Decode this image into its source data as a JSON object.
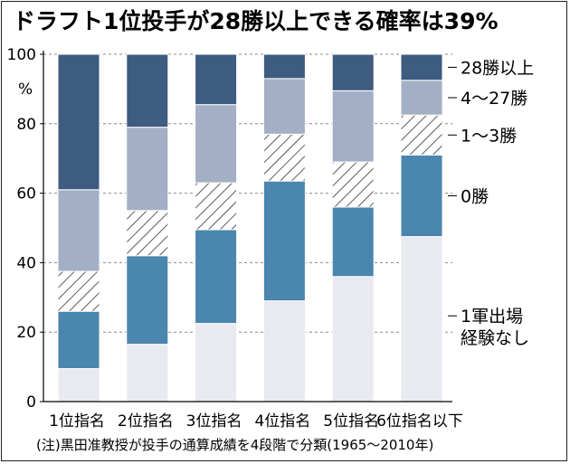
{
  "chart_data": {
    "type": "bar",
    "stacked": true,
    "title": "ドラフト1位投手が28勝以上できる確率は39%",
    "y_unit": "%",
    "ylim": [
      0,
      100
    ],
    "y_ticks": [
      0,
      20,
      40,
      60,
      80,
      100
    ],
    "categories": [
      "1位指名",
      "2位指名",
      "3位指名",
      "4位指名",
      "5位指名",
      "6位指名以下"
    ],
    "series": [
      {
        "name": "1軍出場\n経験なし",
        "color": "#e8eaf0",
        "values": [
          9.5,
          16.5,
          22.5,
          29.0,
          36.0,
          47.5
        ]
      },
      {
        "name": "0勝",
        "color": "#4a86ad",
        "values": [
          16.5,
          25.5,
          27.0,
          34.5,
          20.0,
          23.5
        ]
      },
      {
        "name": "1～3勝",
        "color": "#ffffff",
        "pattern": "hatch",
        "values": [
          11.5,
          13.0,
          13.5,
          13.5,
          13.0,
          11.5
        ]
      },
      {
        "name": "4～27勝",
        "color": "#a2afc4",
        "values": [
          23.5,
          24.0,
          22.5,
          16.0,
          20.5,
          10.0
        ]
      },
      {
        "name": "28勝以上",
        "color": "#3e5b80",
        "values": [
          39.0,
          21.0,
          14.5,
          7.0,
          10.5,
          7.5
        ]
      }
    ],
    "note": "(注)黒田准教授が投手の通算成績を4段階で分類(1965～2010年)"
  }
}
